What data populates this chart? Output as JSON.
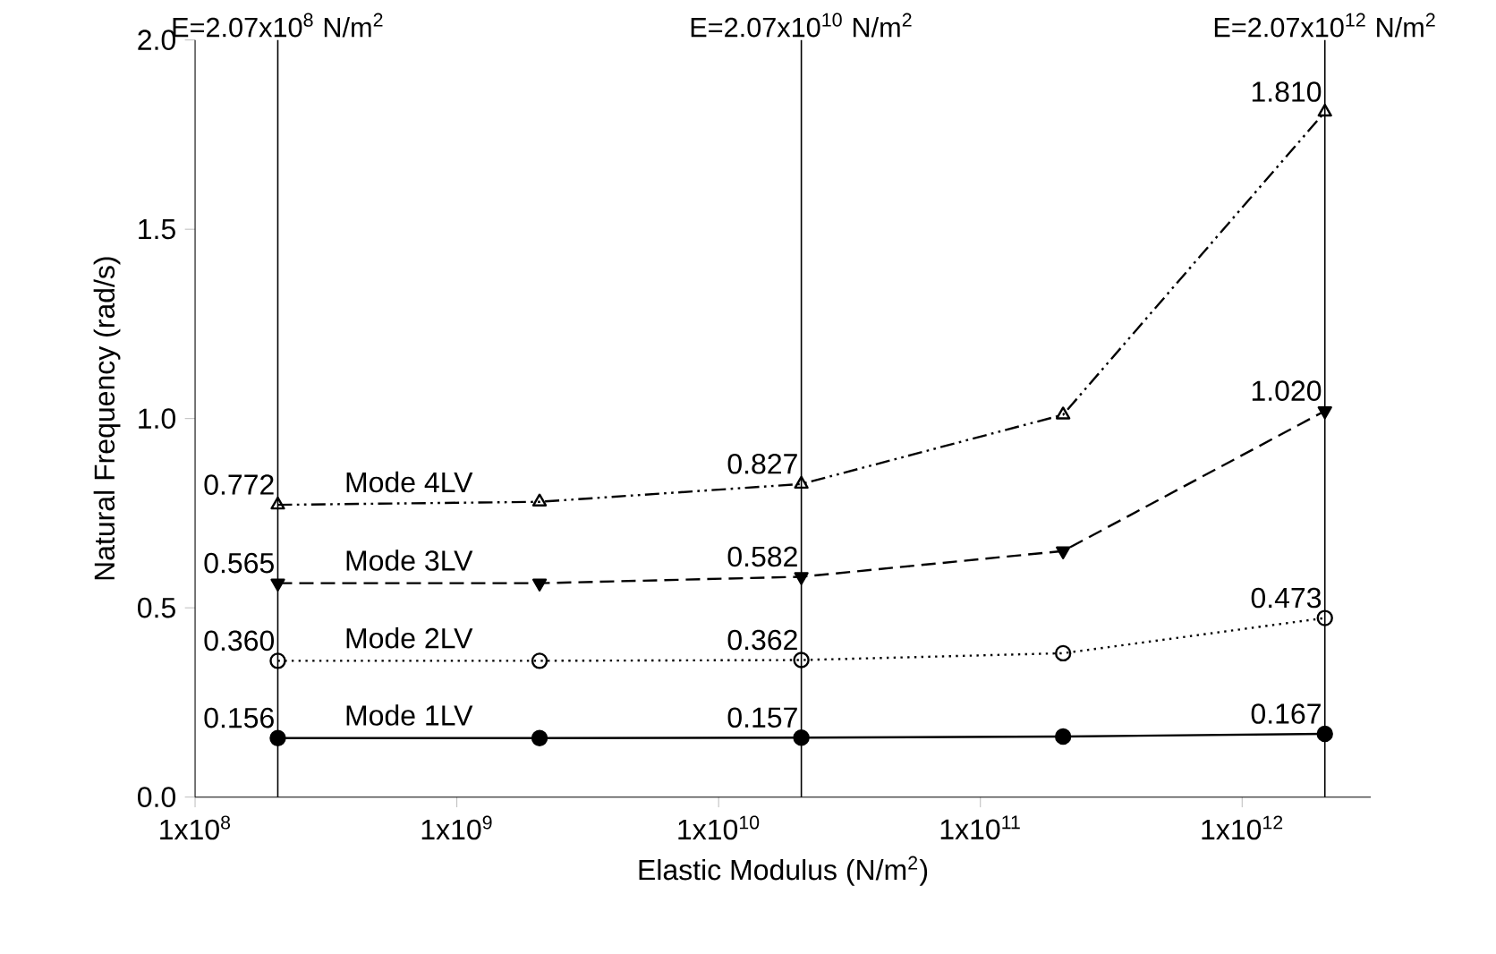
{
  "chart_data": {
    "type": "line",
    "xlabel": "Elastic Modulus (N/m$^{2}$)",
    "ylabel": "Natural Frequency (rad/s)",
    "x": [
      207000000,
      2070000000,
      20700000000,
      207000000000,
      2070000000000
    ],
    "log": "x",
    "xlim": [
      100000000,
      3100000000000
    ],
    "ylim": [
      0,
      2
    ],
    "xticks": [
      {
        "value": 100000000,
        "label": "1x10$^{8}$"
      },
      {
        "value": 1000000000,
        "label": "1x10$^{9}$"
      },
      {
        "value": 10000000000,
        "label": "1x10$^{10}$"
      },
      {
        "value": 100000000000,
        "label": "1x10$^{11}$"
      },
      {
        "value": 1000000000000,
        "label": "1x10$^{12}$"
      }
    ],
    "yticks": [
      {
        "value": 0,
        "label": "0.0"
      },
      {
        "value": 0.5,
        "label": "0.5"
      },
      {
        "value": 1,
        "label": "1.0"
      },
      {
        "value": 1.5,
        "label": "1.5"
      },
      {
        "value": 2,
        "label": "2.0"
      }
    ],
    "grid": false,
    "legend": false,
    "series": [
      {
        "name": "Mode 1LV",
        "color": "#000000",
        "marker": "circle",
        "line_style": "solid",
        "values": [
          0.156,
          0.156,
          0.157,
          0.16,
          0.167
        ],
        "value_labels": [
          "0.156",
          null,
          "0.157",
          null,
          "0.167"
        ]
      },
      {
        "name": "Mode 2LV",
        "color": "#000000",
        "marker": "circle",
        "line_style": "dotted",
        "values": [
          0.36,
          0.36,
          0.362,
          0.38,
          0.473
        ],
        "value_labels": [
          "0.360",
          null,
          "0.362",
          null,
          "0.473"
        ]
      },
      {
        "name": "Mode 3LV",
        "color": "#000000",
        "marker": "triangle",
        "line_style": "dashed",
        "values": [
          0.565,
          0.565,
          0.582,
          0.65,
          1.02
        ],
        "value_labels": [
          "0.565",
          null,
          "0.582",
          null,
          "1.020"
        ]
      },
      {
        "name": "Mode 4LV",
        "color": "#000000",
        "marker": "triangle",
        "line_style": "dashdot",
        "values": [
          0.772,
          0.78,
          0.827,
          1.01,
          1.81
        ],
        "value_labels": [
          "0.772",
          null,
          "0.827",
          null,
          "1.810"
        ]
      }
    ],
    "ref_lines": [
      {
        "axis": "x",
        "value": 207000000
      },
      {
        "axis": "x",
        "value": 20700000000
      },
      {
        "axis": "x",
        "value": 2070000000000
      }
    ],
    "annotations": [
      {
        "text": "E=2.07x10$^{8}$ N/m$^{2}$",
        "x": 207000000,
        "y": 2
      },
      {
        "text": "E=2.07x10$^{10}$ N/m$^{2}$",
        "x": 20700000000,
        "y": 2
      },
      {
        "text": "E=2.07x10$^{12}$ N/m$^{2}$",
        "x": 2070000000000,
        "y": 2
      }
    ]
  }
}
